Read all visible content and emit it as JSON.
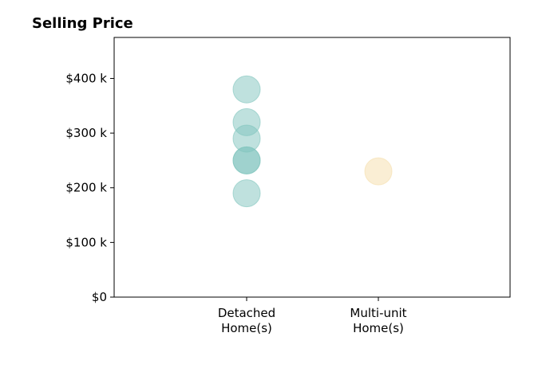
{
  "chart_data": {
    "type": "scatter",
    "title": "Selling Price",
    "xlabel": "",
    "ylabel": "",
    "categories": [
      {
        "line1": "Detached",
        "line2": "Home(s)"
      },
      {
        "line1": "Multi-unit",
        "line2": "Home(s)"
      }
    ],
    "ylim": [
      0,
      475000
    ],
    "yticks": [
      {
        "value": 0,
        "label": "$0"
      },
      {
        "value": 100000,
        "label": "$100 k"
      },
      {
        "value": 200000,
        "label": "$200 k"
      },
      {
        "value": 300000,
        "label": "$300 k"
      },
      {
        "value": 400000,
        "label": "$400 k"
      }
    ],
    "grid": false,
    "series": [
      {
        "category": 0,
        "color": "#7fc4bd",
        "values": [
          380000,
          320000,
          290000,
          250000,
          250000,
          190000
        ]
      },
      {
        "category": 1,
        "color": "#f5deaa",
        "values": [
          230000
        ]
      }
    ]
  }
}
